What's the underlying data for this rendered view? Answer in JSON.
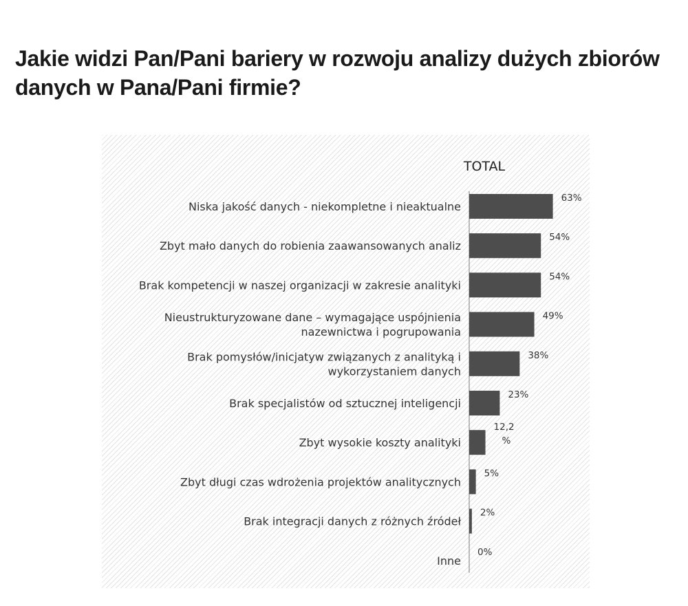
{
  "page": {
    "heading": "Jakie widzi Pan/Pani bariery w rozwoju analizy dużych zbiorów danych w Pana/Pani firmie?"
  },
  "chart_data": {
    "type": "bar",
    "orientation": "horizontal",
    "title": "TOTAL",
    "categories": [
      [
        "Niska jakość danych - niekompletne i nieaktualne"
      ],
      [
        "Zbyt mało danych do robienia zaawansowanych analiz"
      ],
      [
        "Brak kompetencji w naszej organizacji w zakresie analityki"
      ],
      [
        "Nieustrukturyzowane dane – wymagające uspójnienia",
        "nazewnictwa i pogrupowania"
      ],
      [
        "Brak pomysłów/inicjatyw związanych z analityką i",
        "wykorzystaniem danych"
      ],
      [
        "Brak specjalistów od sztucznej inteligencji"
      ],
      [
        "Zbyt wysokie koszty analityki"
      ],
      [
        "Zbyt długi czas wdrożenia projektów analitycznych"
      ],
      [
        "Brak integracji danych z różnych źródeł"
      ],
      [
        "Inne"
      ]
    ],
    "values": [
      63,
      54,
      54,
      49,
      38,
      23,
      12.2,
      5,
      2,
      0
    ],
    "data_labels": [
      [
        "63%"
      ],
      [
        "54%"
      ],
      [
        "54%"
      ],
      [
        "49%"
      ],
      [
        "38%"
      ],
      [
        "23%"
      ],
      [
        "12,2",
        "%"
      ],
      [
        "5%"
      ],
      [
        "2%"
      ],
      [
        "0%"
      ]
    ],
    "bar_color": "#4d4d4d",
    "grid": false,
    "legend": "none"
  }
}
